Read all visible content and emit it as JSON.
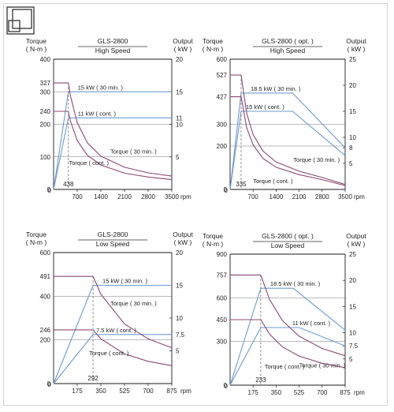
{
  "colors": {
    "power": "#6f9bd1",
    "torque": "#8b4a72",
    "grid": "#1a1a1a",
    "guide": "#777777"
  },
  "chart_data": [
    {
      "type": "line",
      "title": "GLS-2800",
      "subtitle": "High Speed",
      "ylabel": "Torque",
      "yunit": "( N-m )",
      "y2label": "Output",
      "y2unit": "( kW )",
      "xunit": "rpm",
      "xlim": [
        0,
        3500
      ],
      "ylim": [
        0,
        400
      ],
      "y2lim": [
        0,
        20
      ],
      "xticks": [
        700,
        1400,
        2100,
        2800,
        3500
      ],
      "yticks": [
        0,
        100,
        200,
        300,
        400
      ],
      "y2ticks": [
        5,
        10,
        15,
        20
      ],
      "special_y": [
        "327",
        "240"
      ],
      "special_y2": [
        "11"
      ],
      "special_x": "438",
      "series": [
        {
          "name": "15 kW ( 30 min. )",
          "kind": "power",
          "x": [
            0,
            438,
            3500
          ],
          "y": [
            0,
            15,
            15
          ]
        },
        {
          "name": "11 kW ( cont. )",
          "kind": "power",
          "x": [
            0,
            438,
            3500
          ],
          "y": [
            0,
            11,
            11
          ]
        },
        {
          "name": "Torque ( 30 min. )",
          "kind": "torque",
          "x": [
            0,
            438,
            500,
            700,
            1000,
            1400,
            2100,
            2800,
            3500
          ],
          "y": [
            327,
            327,
            287,
            205,
            143,
            102,
            68,
            51,
            41
          ]
        },
        {
          "name": "Torque ( cont. )",
          "kind": "torque",
          "x": [
            0,
            438,
            500,
            700,
            1000,
            1400,
            2100,
            2800,
            3500
          ],
          "y": [
            240,
            240,
            210,
            150,
            105,
            75,
            50,
            38,
            30
          ]
        }
      ]
    },
    {
      "type": "line",
      "title": "GLS-2800 ( opt. )",
      "subtitle": "High Speed",
      "ylabel": "Torque",
      "yunit": "( N-m )",
      "y2label": "Output",
      "y2unit": "( kW )",
      "xunit": "rpm",
      "xlim": [
        0,
        3500
      ],
      "ylim": [
        0,
        600
      ],
      "y2lim": [
        0,
        25
      ],
      "xticks": [
        700,
        1400,
        2100,
        2800,
        3500
      ],
      "yticks": [
        0,
        200,
        300,
        600
      ],
      "y2ticks": [
        5,
        8,
        10,
        15,
        20,
        25
      ],
      "special_y": [
        "527",
        "427"
      ],
      "special_y2": [],
      "special_x": "335",
      "series": [
        {
          "name": "18.5 kW ( 30 min. )",
          "kind": "power",
          "x": [
            0,
            335,
            1900,
            3500
          ],
          "y": [
            0,
            18.5,
            18.5,
            8
          ]
        },
        {
          "name": "15 kW ( cont. )",
          "kind": "power",
          "x": [
            0,
            335,
            1900,
            3500
          ],
          "y": [
            0,
            15,
            15,
            6.5
          ]
        },
        {
          "name": "Torque ( 30 min. )",
          "kind": "torque",
          "x": [
            0,
            335,
            500,
            700,
            1000,
            1400,
            2100,
            2800,
            3500
          ],
          "y": [
            527,
            527,
            353,
            252,
            177,
            126,
            84,
            55,
            23
          ]
        },
        {
          "name": "Torque ( cont. )",
          "kind": "torque",
          "x": [
            0,
            335,
            500,
            700,
            1000,
            1400,
            2100,
            2800,
            3500
          ],
          "y": [
            427,
            427,
            286,
            205,
            143,
            102,
            68,
            45,
            18
          ]
        }
      ]
    },
    {
      "type": "line",
      "title": "GLS-2800",
      "subtitle": "Low Speed",
      "ylabel": "Torque",
      "yunit": "( N-m )",
      "y2label": "Output",
      "y2unit": "( kW )",
      "xunit": "rpm",
      "xlim": [
        0,
        875
      ],
      "ylim": [
        0,
        600
      ],
      "y2lim": [
        0,
        20
      ],
      "xticks": [
        175,
        350,
        525,
        700,
        875
      ],
      "yticks": [
        0,
        200,
        400,
        600
      ],
      "y2ticks": [
        5,
        10,
        15,
        20
      ],
      "special_y": [
        "491",
        "246"
      ],
      "special_y2": [
        "7.5"
      ],
      "special_x": "292",
      "series": [
        {
          "name": "15 kW ( 30 min. )",
          "kind": "power",
          "x": [
            0,
            292,
            875
          ],
          "y": [
            0,
            15,
            15
          ]
        },
        {
          "name": "7.5 kW ( cont. )",
          "kind": "power",
          "x": [
            0,
            292,
            875
          ],
          "y": [
            0,
            7.5,
            7.5
          ]
        },
        {
          "name": "Torque ( 30 min. )",
          "kind": "torque",
          "x": [
            0,
            292,
            350,
            525,
            700,
            875
          ],
          "y": [
            491,
            491,
            409,
            273,
            205,
            164
          ]
        },
        {
          "name": "Torque ( cont. )",
          "kind": "torque",
          "x": [
            0,
            292,
            350,
            525,
            700,
            875
          ],
          "y": [
            246,
            246,
            205,
            136,
            102,
            82
          ]
        }
      ]
    },
    {
      "type": "line",
      "title": "GLS-2800 ( opt. )",
      "subtitle": "Low Speed",
      "ylabel": "Torque",
      "yunit": "( N-m )",
      "y2label": "Output",
      "y2unit": "( kW )",
      "xunit": "rpm",
      "xlim": [
        0,
        875
      ],
      "ylim": [
        0,
        900
      ],
      "y2lim": [
        0,
        25
      ],
      "xticks": [
        175,
        350,
        525,
        700,
        875
      ],
      "yticks": [
        0,
        300,
        600,
        900
      ],
      "y2ticks": [
        5,
        7.5,
        10,
        15,
        20,
        25
      ],
      "special_y": [
        "757",
        "450"
      ],
      "special_y2": [],
      "special_x": "233",
      "series": [
        {
          "name": "18.5 kW ( 30 min. )",
          "kind": "power",
          "x": [
            0,
            233,
            480,
            875
          ],
          "y": [
            0,
            18.5,
            18.5,
            10.5
          ]
        },
        {
          "name": "11 kW ( cont. )",
          "kind": "power",
          "x": [
            0,
            233,
            525,
            875
          ],
          "y": [
            0,
            11,
            11,
            7.5
          ]
        },
        {
          "name": "Torque ( 30 min. )",
          "kind": "torque",
          "x": [
            0,
            233,
            300,
            400,
            525,
            700,
            875
          ],
          "y": [
            757,
            757,
            588,
            442,
            336,
            252,
            202
          ]
        },
        {
          "name": "Torque ( cont. )",
          "kind": "torque",
          "x": [
            0,
            233,
            300,
            400,
            525,
            700,
            875
          ],
          "y": [
            450,
            450,
            350,
            262,
            200,
            150,
            120
          ]
        }
      ]
    }
  ]
}
